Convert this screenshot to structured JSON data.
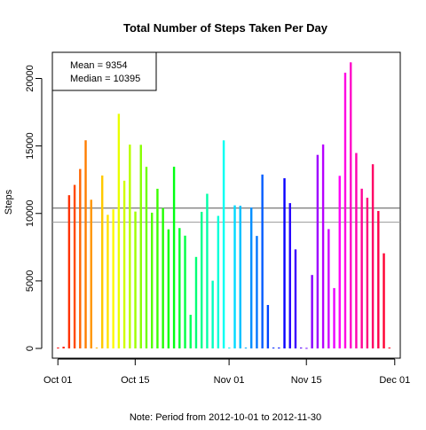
{
  "chart_data": {
    "type": "bar",
    "title": "Total Number of Steps Taken Per Day",
    "ylabel": "Steps",
    "note": "Note: Period from 2012-10-01 to 2012-11-30",
    "ylim": [
      0,
      22000
    ],
    "x_range": [
      "2012-09-30",
      "2012-12-02"
    ],
    "y_ticks": [
      0,
      5000,
      10000,
      15000,
      20000
    ],
    "x_ticks": [
      {
        "date": "2012-10-01",
        "label": "Oct 01"
      },
      {
        "date": "2012-10-15",
        "label": "Oct 15"
      },
      {
        "date": "2012-11-01",
        "label": "Nov 01"
      },
      {
        "date": "2012-11-15",
        "label": "Nov 15"
      },
      {
        "date": "2012-12-01",
        "label": "Dec 01"
      }
    ],
    "mean": 9354,
    "median": 10395,
    "legend": {
      "placement": "top-left",
      "lines": [
        "Mean = 9354",
        "Median = 10395"
      ]
    },
    "reference_lines": [
      {
        "value": 9354,
        "color": "#999999"
      },
      {
        "value": 10395,
        "color": "#555555"
      }
    ],
    "bar_color_scheme": "rainbow",
    "dates": [
      "2012-10-01",
      "2012-10-02",
      "2012-10-03",
      "2012-10-04",
      "2012-10-05",
      "2012-10-06",
      "2012-10-07",
      "2012-10-08",
      "2012-10-09",
      "2012-10-10",
      "2012-10-11",
      "2012-10-12",
      "2012-10-13",
      "2012-10-14",
      "2012-10-15",
      "2012-10-16",
      "2012-10-17",
      "2012-10-18",
      "2012-10-19",
      "2012-10-20",
      "2012-10-21",
      "2012-10-22",
      "2012-10-23",
      "2012-10-24",
      "2012-10-25",
      "2012-10-26",
      "2012-10-27",
      "2012-10-28",
      "2012-10-29",
      "2012-10-30",
      "2012-10-31",
      "2012-11-01",
      "2012-11-02",
      "2012-11-03",
      "2012-11-04",
      "2012-11-05",
      "2012-11-06",
      "2012-11-07",
      "2012-11-08",
      "2012-11-09",
      "2012-11-10",
      "2012-11-11",
      "2012-11-12",
      "2012-11-13",
      "2012-11-14",
      "2012-11-15",
      "2012-11-16",
      "2012-11-17",
      "2012-11-18",
      "2012-11-19",
      "2012-11-20",
      "2012-11-21",
      "2012-11-22",
      "2012-11-23",
      "2012-11-24",
      "2012-11-25",
      "2012-11-26",
      "2012-11-27",
      "2012-11-28",
      "2012-11-29",
      "2012-11-30"
    ],
    "values": [
      0,
      126,
      11352,
      12116,
      13294,
      15420,
      11015,
      0,
      12811,
      9900,
      10304,
      17382,
      12426,
      15098,
      10139,
      15084,
      13452,
      10056,
      11829,
      10395,
      8821,
      13460,
      8918,
      8355,
      2492,
      6778,
      10119,
      11458,
      5018,
      9819,
      15414,
      0,
      10600,
      10571,
      0,
      10439,
      8334,
      12883,
      3219,
      0,
      0,
      12608,
      10765,
      7336,
      0,
      41,
      5441,
      14339,
      15110,
      8841,
      4472,
      12787,
      20427,
      21194,
      14478,
      11834,
      11162,
      13646,
      10183,
      7047,
      0
    ]
  }
}
